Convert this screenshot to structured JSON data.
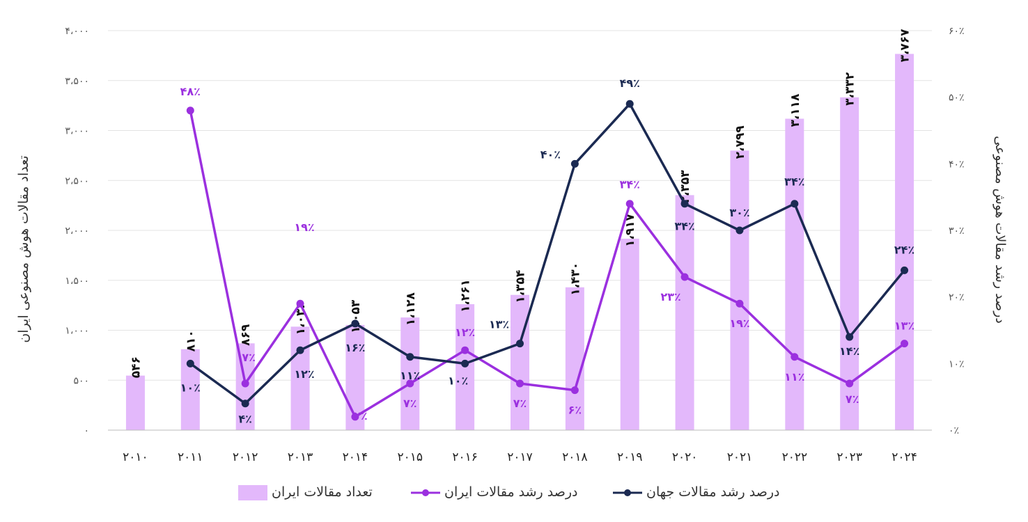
{
  "chart_data": {
    "type": "bar",
    "categories": [
      "۲۰۱۰",
      "۲۰۱۱",
      "۲۰۱۲",
      "۲۰۱۳",
      "۲۰۱۴",
      "۲۰۱۵",
      "۲۰۱۶",
      "۲۰۱۷",
      "۲۰۱۸",
      "۲۰۱۹",
      "۲۰۲۰",
      "۲۰۲۱",
      "۲۰۲۲",
      "۲۰۲۳",
      "۲۰۲۴"
    ],
    "y_left": {
      "label": "تعداد مقالات هوش مصنوعی ایران",
      "range": [
        0,
        4000
      ],
      "ticks": [
        0,
        500,
        1000,
        1500,
        2000,
        2500,
        3000,
        3500,
        4000
      ],
      "tick_labels": [
        "۰",
        "۵۰۰",
        "۱،۰۰۰",
        "۱،۵۰۰",
        "۲،۰۰۰",
        "۲،۵۰۰",
        "۳،۰۰۰",
        "۳،۵۰۰",
        "۴،۰۰۰"
      ]
    },
    "y_right": {
      "label": "درصد رشد مقالات هوش مصنوعی",
      "range": [
        0,
        60
      ],
      "ticks": [
        0,
        10,
        20,
        30,
        40,
        50,
        60
      ],
      "tick_labels": [
        "۰٪",
        "۱۰٪",
        "۲۰٪",
        "۳۰٪",
        "۴۰٪",
        "۵۰٪",
        "۶۰٪"
      ]
    },
    "grid": true,
    "legend_position": "bottom",
    "series": [
      {
        "name": "تعداد مقالات ایران",
        "kind": "bar",
        "axis": "left",
        "color": "#E3B8FB",
        "values": [
          546,
          810,
          869,
          1036,
          1053,
          1128,
          1261,
          1354,
          1430,
          1917,
          2353,
          2799,
          3118,
          3332,
          3767
        ],
        "labels": [
          "۵۴۶",
          "۸۱۰",
          "۸۶۹",
          "۱،۰۳۶",
          "۱،۰۵۳",
          "۱،۱۲۸",
          "۱،۲۶۱",
          "۱،۳۵۴",
          "۱،۴۳۰",
          "۱،۹۱۷",
          "۲،۳۵۳",
          "۲،۷۹۹",
          "۳،۱۱۸",
          "۳،۳۳۲",
          "۳،۷۶۷"
        ]
      },
      {
        "name": "درصد رشد مقالات ایران",
        "kind": "line",
        "axis": "right",
        "color": "#9B30DF",
        "values": [
          null,
          48,
          7,
          19,
          2,
          7,
          12,
          7,
          6,
          34,
          23,
          19,
          11,
          7,
          13
        ],
        "labels": [
          "",
          "۴۸٪",
          "۷٪",
          "۱۹٪",
          "۲٪",
          "۷٪",
          "۱۲٪",
          "۷٪",
          "۶٪",
          "۳۴٪",
          "۲۳٪",
          "۱۹٪",
          "۱۱٪",
          "۷٪",
          "۱۳٪"
        ]
      },
      {
        "name": "درصد رشد مقالات جهان",
        "kind": "line",
        "axis": "right",
        "color": "#1B2A52",
        "values": [
          null,
          10,
          4,
          12,
          16,
          11,
          10,
          13,
          40,
          49,
          34,
          30,
          34,
          14,
          24
        ],
        "labels": [
          "",
          "۱۰٪",
          "۴٪",
          "۱۲٪",
          "۱۶٪",
          "۱۱٪",
          "۱۰٪",
          "۱۳٪",
          "۴۰٪",
          "۴۹٪",
          "۳۴٪",
          "۳۰٪",
          "۳۴٪",
          "۱۴٪",
          "۲۴٪"
        ]
      }
    ]
  }
}
